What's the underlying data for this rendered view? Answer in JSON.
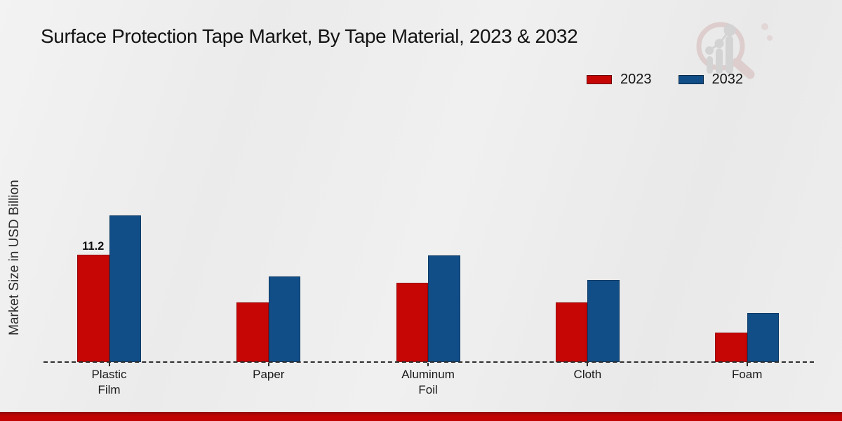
{
  "header": {
    "title": "Surface Protection Tape Market, By Tape Material, 2023 & 2032"
  },
  "watermark": {
    "description": "magnifier-bar-chart-logo",
    "ring_color": "#ddcccc",
    "bars_color": "#d2d2d2"
  },
  "footer": {
    "strip_color": "#c20303"
  },
  "chart_data": {
    "type": "bar",
    "title": "Surface Protection Tape Market, By Tape Material, 2023 & 2032",
    "xlabel": "",
    "ylabel": "Market Size in USD Billion",
    "categories": [
      "Plastic\nFilm",
      "Paper",
      "Aluminum\nFoil",
      "Cloth",
      "Foam"
    ],
    "series": [
      {
        "name": "2023",
        "color": "#c60505",
        "edge_color": "#990404",
        "values": [
          11.2,
          6.2,
          8.3,
          6.2,
          3.1
        ]
      },
      {
        "name": "2032",
        "color": "#114e87",
        "edge_color": "#0c3a66",
        "values": [
          15.3,
          8.9,
          11.1,
          8.6,
          5.1
        ]
      }
    ],
    "bar_labels": [
      {
        "series_index": 0,
        "category_index": 0,
        "text": "11.2"
      }
    ],
    "ylim": [
      0,
      17.5
    ],
    "y_axis_visible": false,
    "grid": false,
    "baseline_style": "dashed",
    "legend_position": "top-right"
  }
}
